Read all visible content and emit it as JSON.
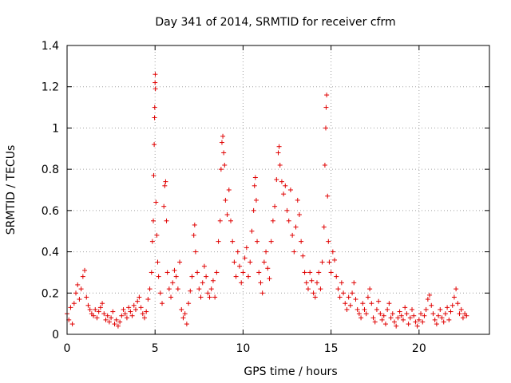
{
  "chart_data": {
    "type": "scatter",
    "title": "Day 341 of 2014, SRMTID for receiver cfrm",
    "xlabel": "GPS time / hours",
    "ylabel": "SRMTID / TECUs",
    "xlim": [
      0,
      24
    ],
    "ylim": [
      0,
      1.4
    ],
    "xticks": [
      0,
      5,
      10,
      15,
      20
    ],
    "xtick_labels": [
      "0",
      "5",
      "10",
      "15",
      "20"
    ],
    "yticks": [
      0,
      0.2,
      0.4,
      0.6,
      0.8,
      1,
      1.2,
      1.4
    ],
    "ytick_labels": [
      "0",
      "0.2",
      "0.4",
      "0.6",
      "0.8",
      "1",
      "1.2",
      "1.4"
    ],
    "grid": true,
    "marker": "+",
    "color": "#e00000",
    "series": [
      {
        "name": "SRMTID",
        "points": [
          [
            0.0,
            0.1
          ],
          [
            0.1,
            0.07
          ],
          [
            0.2,
            0.13
          ],
          [
            0.3,
            0.05
          ],
          [
            0.4,
            0.15
          ],
          [
            0.5,
            0.2
          ],
          [
            0.6,
            0.24
          ],
          [
            0.7,
            0.17
          ],
          [
            0.8,
            0.22
          ],
          [
            0.9,
            0.28
          ],
          [
            1.0,
            0.31
          ],
          [
            1.1,
            0.18
          ],
          [
            1.2,
            0.14
          ],
          [
            1.3,
            0.12
          ],
          [
            1.4,
            0.1
          ],
          [
            1.5,
            0.09
          ],
          [
            1.6,
            0.12
          ],
          [
            1.7,
            0.08
          ],
          [
            1.8,
            0.11
          ],
          [
            1.9,
            0.13
          ],
          [
            2.0,
            0.15
          ],
          [
            2.1,
            0.1
          ],
          [
            2.2,
            0.07
          ],
          [
            2.3,
            0.09
          ],
          [
            2.4,
            0.06
          ],
          [
            2.5,
            0.08
          ],
          [
            2.6,
            0.11
          ],
          [
            2.7,
            0.05
          ],
          [
            2.8,
            0.07
          ],
          [
            2.9,
            0.04
          ],
          [
            3.0,
            0.06
          ],
          [
            3.1,
            0.09
          ],
          [
            3.2,
            0.12
          ],
          [
            3.3,
            0.1
          ],
          [
            3.4,
            0.08
          ],
          [
            3.5,
            0.13
          ],
          [
            3.6,
            0.11
          ],
          [
            3.7,
            0.09
          ],
          [
            3.8,
            0.14
          ],
          [
            3.9,
            0.12
          ],
          [
            4.0,
            0.16
          ],
          [
            4.1,
            0.18
          ],
          [
            4.2,
            0.13
          ],
          [
            4.3,
            0.1
          ],
          [
            4.4,
            0.08
          ],
          [
            4.5,
            0.11
          ],
          [
            4.6,
            0.17
          ],
          [
            4.7,
            0.22
          ],
          [
            4.8,
            0.3
          ],
          [
            4.85,
            0.45
          ],
          [
            4.9,
            0.55
          ],
          [
            4.92,
            0.77
          ],
          [
            4.95,
            0.92
          ],
          [
            4.97,
            1.05
          ],
          [
            4.98,
            1.1
          ],
          [
            5.0,
            1.22
          ],
          [
            5.01,
            1.26
          ],
          [
            5.02,
            1.19
          ],
          [
            5.05,
            0.64
          ],
          [
            5.1,
            0.48
          ],
          [
            5.15,
            0.35
          ],
          [
            5.2,
            0.28
          ],
          [
            5.3,
            0.2
          ],
          [
            5.4,
            0.15
          ],
          [
            5.5,
            0.62
          ],
          [
            5.55,
            0.72
          ],
          [
            5.6,
            0.74
          ],
          [
            5.65,
            0.55
          ],
          [
            5.7,
            0.3
          ],
          [
            5.8,
            0.22
          ],
          [
            5.9,
            0.18
          ],
          [
            6.0,
            0.25
          ],
          [
            6.1,
            0.31
          ],
          [
            6.2,
            0.28
          ],
          [
            6.3,
            0.22
          ],
          [
            6.4,
            0.35
          ],
          [
            6.5,
            0.12
          ],
          [
            6.6,
            0.08
          ],
          [
            6.7,
            0.1
          ],
          [
            6.8,
            0.05
          ],
          [
            6.9,
            0.15
          ],
          [
            7.0,
            0.21
          ],
          [
            7.1,
            0.28
          ],
          [
            7.2,
            0.48
          ],
          [
            7.25,
            0.53
          ],
          [
            7.3,
            0.4
          ],
          [
            7.4,
            0.3
          ],
          [
            7.5,
            0.22
          ],
          [
            7.6,
            0.18
          ],
          [
            7.7,
            0.25
          ],
          [
            7.8,
            0.33
          ],
          [
            7.9,
            0.28
          ],
          [
            8.0,
            0.2
          ],
          [
            8.1,
            0.18
          ],
          [
            8.2,
            0.22
          ],
          [
            8.3,
            0.26
          ],
          [
            8.4,
            0.18
          ],
          [
            8.5,
            0.3
          ],
          [
            8.6,
            0.45
          ],
          [
            8.7,
            0.55
          ],
          [
            8.75,
            0.8
          ],
          [
            8.8,
            0.93
          ],
          [
            8.85,
            0.96
          ],
          [
            8.9,
            0.88
          ],
          [
            8.95,
            0.82
          ],
          [
            9.0,
            0.65
          ],
          [
            9.1,
            0.58
          ],
          [
            9.2,
            0.7
          ],
          [
            9.3,
            0.55
          ],
          [
            9.4,
            0.45
          ],
          [
            9.5,
            0.35
          ],
          [
            9.6,
            0.28
          ],
          [
            9.7,
            0.4
          ],
          [
            9.8,
            0.33
          ],
          [
            9.9,
            0.25
          ],
          [
            10.0,
            0.3
          ],
          [
            10.1,
            0.37
          ],
          [
            10.2,
            0.42
          ],
          [
            10.3,
            0.28
          ],
          [
            10.4,
            0.35
          ],
          [
            10.5,
            0.5
          ],
          [
            10.6,
            0.6
          ],
          [
            10.65,
            0.72
          ],
          [
            10.7,
            0.76
          ],
          [
            10.75,
            0.65
          ],
          [
            10.8,
            0.45
          ],
          [
            10.9,
            0.3
          ],
          [
            11.0,
            0.25
          ],
          [
            11.1,
            0.2
          ],
          [
            11.2,
            0.35
          ],
          [
            11.3,
            0.4
          ],
          [
            11.4,
            0.32
          ],
          [
            11.5,
            0.27
          ],
          [
            11.6,
            0.45
          ],
          [
            11.7,
            0.55
          ],
          [
            11.8,
            0.62
          ],
          [
            11.9,
            0.75
          ],
          [
            12.0,
            0.88
          ],
          [
            12.05,
            0.91
          ],
          [
            12.1,
            0.82
          ],
          [
            12.2,
            0.74
          ],
          [
            12.3,
            0.68
          ],
          [
            12.4,
            0.72
          ],
          [
            12.5,
            0.6
          ],
          [
            12.6,
            0.55
          ],
          [
            12.7,
            0.7
          ],
          [
            12.8,
            0.48
          ],
          [
            12.9,
            0.4
          ],
          [
            13.0,
            0.52
          ],
          [
            13.1,
            0.65
          ],
          [
            13.2,
            0.58
          ],
          [
            13.3,
            0.45
          ],
          [
            13.4,
            0.38
          ],
          [
            13.5,
            0.3
          ],
          [
            13.6,
            0.25
          ],
          [
            13.7,
            0.22
          ],
          [
            13.8,
            0.3
          ],
          [
            13.9,
            0.26
          ],
          [
            14.0,
            0.2
          ],
          [
            14.1,
            0.18
          ],
          [
            14.2,
            0.25
          ],
          [
            14.3,
            0.3
          ],
          [
            14.4,
            0.22
          ],
          [
            14.5,
            0.35
          ],
          [
            14.6,
            0.52
          ],
          [
            14.65,
            0.82
          ],
          [
            14.7,
            1.0
          ],
          [
            14.72,
            1.1
          ],
          [
            14.75,
            1.16
          ],
          [
            14.8,
            0.67
          ],
          [
            14.85,
            0.45
          ],
          [
            14.9,
            0.35
          ],
          [
            15.0,
            0.3
          ],
          [
            15.1,
            0.4
          ],
          [
            15.2,
            0.36
          ],
          [
            15.3,
            0.28
          ],
          [
            15.4,
            0.22
          ],
          [
            15.5,
            0.18
          ],
          [
            15.6,
            0.25
          ],
          [
            15.7,
            0.2
          ],
          [
            15.8,
            0.15
          ],
          [
            15.9,
            0.12
          ],
          [
            16.0,
            0.18
          ],
          [
            16.1,
            0.14
          ],
          [
            16.2,
            0.2
          ],
          [
            16.3,
            0.25
          ],
          [
            16.4,
            0.17
          ],
          [
            16.5,
            0.12
          ],
          [
            16.6,
            0.1
          ],
          [
            16.7,
            0.08
          ],
          [
            16.8,
            0.15
          ],
          [
            16.9,
            0.12
          ],
          [
            17.0,
            0.1
          ],
          [
            17.1,
            0.18
          ],
          [
            17.2,
            0.22
          ],
          [
            17.3,
            0.15
          ],
          [
            17.4,
            0.08
          ],
          [
            17.5,
            0.06
          ],
          [
            17.6,
            0.12
          ],
          [
            17.7,
            0.16
          ],
          [
            17.8,
            0.1
          ],
          [
            17.9,
            0.07
          ],
          [
            18.0,
            0.09
          ],
          [
            18.1,
            0.05
          ],
          [
            18.2,
            0.12
          ],
          [
            18.3,
            0.15
          ],
          [
            18.4,
            0.08
          ],
          [
            18.5,
            0.1
          ],
          [
            18.6,
            0.06
          ],
          [
            18.7,
            0.04
          ],
          [
            18.8,
            0.08
          ],
          [
            18.9,
            0.11
          ],
          [
            19.0,
            0.09
          ],
          [
            19.1,
            0.07
          ],
          [
            19.2,
            0.13
          ],
          [
            19.3,
            0.1
          ],
          [
            19.4,
            0.05
          ],
          [
            19.5,
            0.08
          ],
          [
            19.6,
            0.12
          ],
          [
            19.7,
            0.09
          ],
          [
            19.8,
            0.06
          ],
          [
            19.9,
            0.04
          ],
          [
            20.0,
            0.07
          ],
          [
            20.1,
            0.1
          ],
          [
            20.2,
            0.06
          ],
          [
            20.3,
            0.09
          ],
          [
            20.4,
            0.12
          ],
          [
            20.5,
            0.17
          ],
          [
            20.6,
            0.19
          ],
          [
            20.7,
            0.14
          ],
          [
            20.8,
            0.1
          ],
          [
            20.9,
            0.07
          ],
          [
            21.0,
            0.05
          ],
          [
            21.1,
            0.09
          ],
          [
            21.2,
            0.12
          ],
          [
            21.3,
            0.08
          ],
          [
            21.4,
            0.06
          ],
          [
            21.5,
            0.1
          ],
          [
            21.6,
            0.13
          ],
          [
            21.7,
            0.07
          ],
          [
            21.8,
            0.11
          ],
          [
            21.9,
            0.14
          ],
          [
            22.0,
            0.18
          ],
          [
            22.1,
            0.22
          ],
          [
            22.2,
            0.15
          ],
          [
            22.3,
            0.1
          ],
          [
            22.4,
            0.12
          ],
          [
            22.5,
            0.08
          ],
          [
            22.6,
            0.1
          ],
          [
            22.7,
            0.09
          ]
        ]
      }
    ]
  }
}
